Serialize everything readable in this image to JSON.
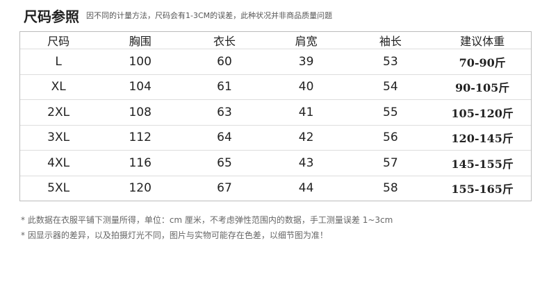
{
  "title": "尺码参照",
  "subtitle": "因不同的计量方法，尺码会有1-3CM的误差，此种状况并非商品质量问题",
  "table": {
    "headers": [
      "尺码",
      "胸围",
      "衣长",
      "肩宽",
      "袖长",
      "建议体重"
    ],
    "rows": [
      [
        "L",
        "100",
        "60",
        "39",
        "53",
        "70-90斤"
      ],
      [
        "XL",
        "104",
        "61",
        "40",
        "54",
        "90-105斤"
      ],
      [
        "2XL",
        "108",
        "63",
        "41",
        "55",
        "105-120斤"
      ],
      [
        "3XL",
        "112",
        "64",
        "42",
        "56",
        "120-145斤"
      ],
      [
        "4XL",
        "116",
        "65",
        "43",
        "57",
        "145-155斤"
      ],
      [
        "5XL",
        "120",
        "67",
        "44",
        "58",
        "155-165斤"
      ]
    ]
  },
  "notes": [
    "* 此数据在衣服平铺下测量所得，单位：cm 厘米，不考虑弹性范围内的数据，手工测量误差 1~3cm",
    "* 因显示器的差异，以及拍摄灯光不同，图片与实物可能存在色差，以细节图为准！"
  ]
}
